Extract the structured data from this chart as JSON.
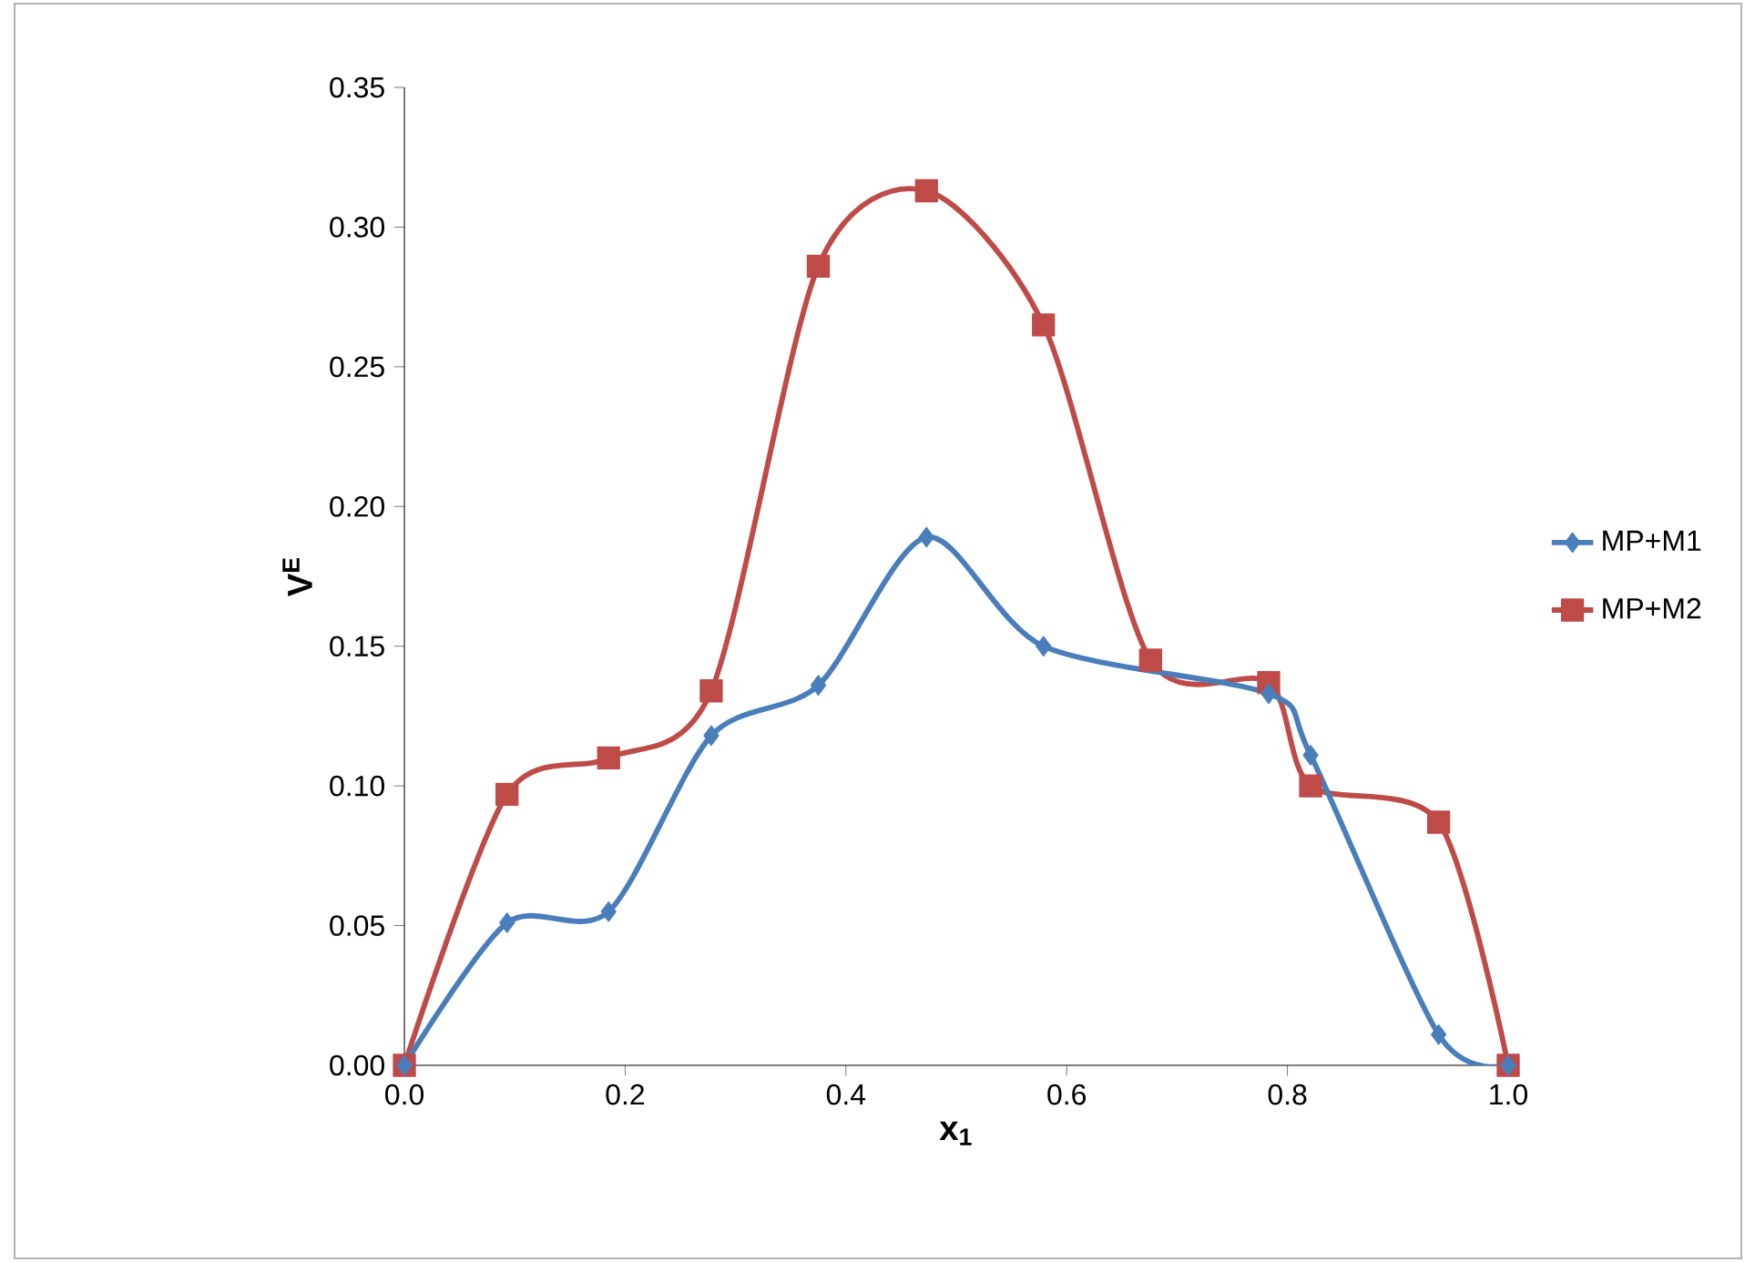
{
  "chart_data": {
    "type": "line",
    "xlabel": "x$_{1}$",
    "ylabel": "V$^{E}$",
    "legend": "right",
    "xlim": [
      0,
      1.0
    ],
    "ylim": [
      0,
      0.35
    ],
    "xticks": [
      {
        "value": 0,
        "label": "0.0"
      },
      {
        "value": 0.2,
        "label": "0.2"
      },
      {
        "value": 0.4,
        "label": "0.4"
      },
      {
        "value": 0.6,
        "label": "0.6"
      },
      {
        "value": 0.8,
        "label": "0.8"
      },
      {
        "value": 1.0,
        "label": "1.0"
      }
    ],
    "yticks": [
      {
        "value": 0,
        "label": "0.00"
      },
      {
        "value": 0.05,
        "label": "0.05"
      },
      {
        "value": 0.1,
        "label": "0.10"
      },
      {
        "value": 0.15,
        "label": "0.15"
      },
      {
        "value": 0.2,
        "label": "0.20"
      },
      {
        "value": 0.25,
        "label": "0.25"
      },
      {
        "value": 0.3,
        "label": "0.30"
      },
      {
        "value": 0.35,
        "label": "0.35"
      }
    ],
    "series": [
      {
        "name": "MP+M1",
        "color": "#4a7ebb",
        "marker": "diamond",
        "x": [
          0,
          0.093,
          0.185,
          0.278,
          0.375,
          0.473,
          0.579,
          0.676,
          0.783,
          0.821,
          0.937,
          1.0
        ],
        "values": [
          0,
          0.051,
          0.055,
          0.118,
          0.136,
          0.189,
          0.15,
          null,
          0.133,
          0.111,
          0.011,
          0
        ]
      },
      {
        "name": "MP+M2",
        "color": "#be4b48",
        "marker": "square",
        "x": [
          0,
          0.093,
          0.185,
          0.278,
          0.375,
          0.473,
          0.579,
          0.676,
          0.783,
          0.821,
          0.937,
          1.0
        ],
        "values": [
          0,
          0.097,
          0.11,
          0.134,
          0.286,
          0.313,
          0.265,
          0.145,
          0.137,
          0.1,
          0.087,
          0
        ]
      }
    ]
  }
}
